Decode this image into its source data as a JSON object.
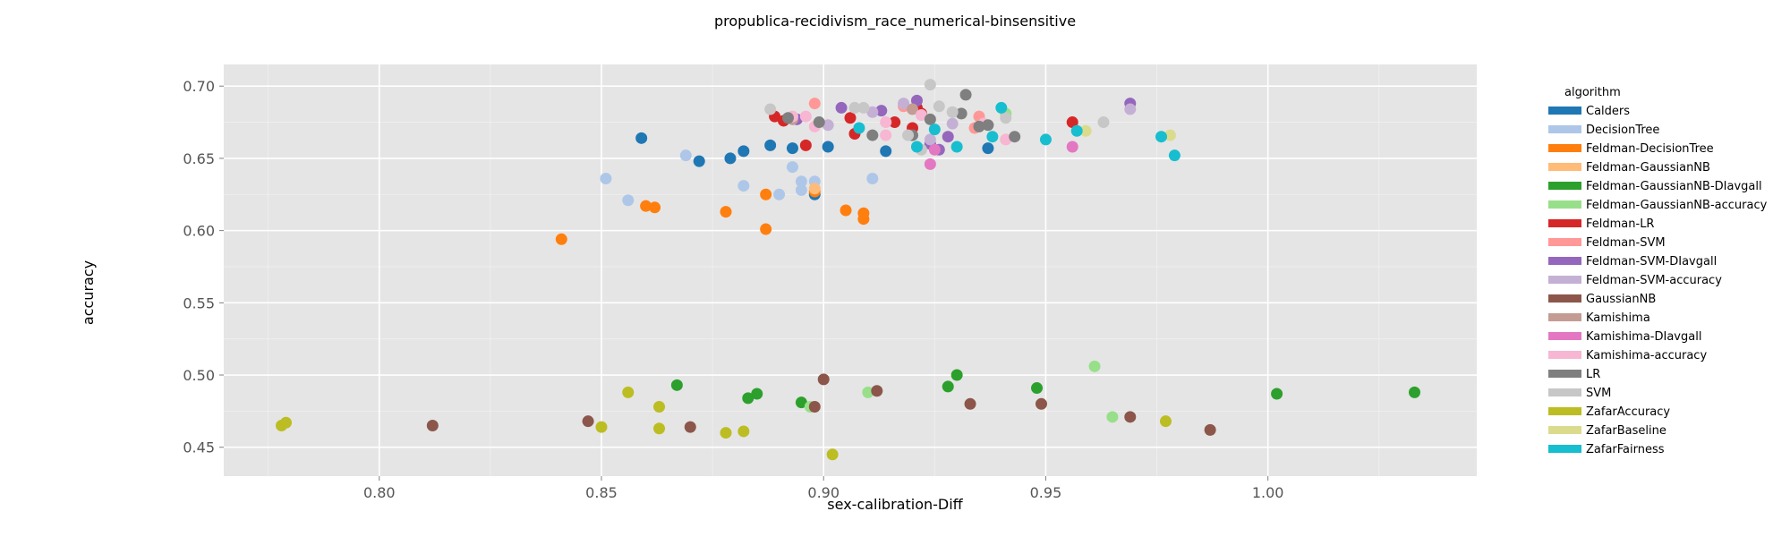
{
  "chart_data": {
    "type": "scatter",
    "title": "propublica-recidivism_race_numerical-binsensitive",
    "xlabel": "sex-calibration-Diff",
    "ylabel": "accuracy",
    "xlim": [
      0.765,
      1.047
    ],
    "ylim": [
      0.43,
      0.715
    ],
    "x_ticks": [
      0.8,
      0.85,
      0.9,
      0.95,
      1.0
    ],
    "x_tick_labels": [
      "0.80",
      "0.85",
      "0.90",
      "0.95",
      "1.00"
    ],
    "y_ticks": [
      0.45,
      0.5,
      0.55,
      0.6,
      0.65,
      0.7
    ],
    "y_tick_labels": [
      "0.45",
      "0.50",
      "0.55",
      "0.60",
      "0.65",
      "0.70"
    ],
    "grid": true,
    "background": "#e5e5e5",
    "legend": {
      "title": "algorithm",
      "position": "right"
    },
    "series": [
      {
        "name": "Calders",
        "color": "#1f77b4",
        "points": [
          [
            0.859,
            0.664
          ],
          [
            0.872,
            0.648
          ],
          [
            0.879,
            0.65
          ],
          [
            0.882,
            0.655
          ],
          [
            0.888,
            0.659
          ],
          [
            0.893,
            0.657
          ],
          [
            0.898,
            0.625
          ],
          [
            0.901,
            0.658
          ],
          [
            0.914,
            0.655
          ],
          [
            0.937,
            0.657
          ]
        ]
      },
      {
        "name": "DecisionTree",
        "color": "#aec7e8",
        "points": [
          [
            0.851,
            0.636
          ],
          [
            0.856,
            0.621
          ],
          [
            0.869,
            0.652
          ],
          [
            0.882,
            0.631
          ],
          [
            0.89,
            0.625
          ],
          [
            0.893,
            0.644
          ],
          [
            0.895,
            0.634
          ],
          [
            0.895,
            0.628
          ],
          [
            0.898,
            0.634
          ],
          [
            0.911,
            0.636
          ]
        ]
      },
      {
        "name": "Feldman-DecisionTree",
        "color": "#ff7f0e",
        "points": [
          [
            0.841,
            0.594
          ],
          [
            0.86,
            0.617
          ],
          [
            0.862,
            0.616
          ],
          [
            0.878,
            0.613
          ],
          [
            0.887,
            0.625
          ],
          [
            0.887,
            0.601
          ],
          [
            0.898,
            0.627
          ],
          [
            0.905,
            0.614
          ],
          [
            0.909,
            0.612
          ],
          [
            0.909,
            0.608
          ]
        ]
      },
      {
        "name": "Feldman-GaussianNB",
        "color": "#ffbb78",
        "points": [
          [
            0.898,
            0.629
          ]
        ]
      },
      {
        "name": "Feldman-GaussianNB-DIavgall",
        "color": "#2ca02c",
        "points": [
          [
            0.867,
            0.493
          ],
          [
            0.883,
            0.484
          ],
          [
            0.885,
            0.487
          ],
          [
            0.895,
            0.481
          ],
          [
            0.928,
            0.492
          ],
          [
            0.93,
            0.5
          ],
          [
            0.948,
            0.491
          ],
          [
            1.002,
            0.487
          ],
          [
            1.033,
            0.488
          ]
        ]
      },
      {
        "name": "Feldman-GaussianNB-accuracy",
        "color": "#98df8a",
        "points": [
          [
            0.897,
            0.478
          ],
          [
            0.91,
            0.488
          ],
          [
            0.941,
            0.681
          ],
          [
            0.961,
            0.506
          ],
          [
            0.965,
            0.471
          ]
        ]
      },
      {
        "name": "Feldman-LR",
        "color": "#d62728",
        "points": [
          [
            0.889,
            0.679
          ],
          [
            0.891,
            0.676
          ],
          [
            0.896,
            0.659
          ],
          [
            0.906,
            0.678
          ],
          [
            0.907,
            0.667
          ],
          [
            0.916,
            0.675
          ],
          [
            0.92,
            0.671
          ],
          [
            0.921,
            0.685
          ],
          [
            0.922,
            0.681
          ],
          [
            0.956,
            0.675
          ]
        ]
      },
      {
        "name": "Feldman-SVM",
        "color": "#ff9896",
        "points": [
          [
            0.898,
            0.688
          ],
          [
            0.918,
            0.686
          ],
          [
            0.934,
            0.671
          ],
          [
            0.935,
            0.679
          ]
        ]
      },
      {
        "name": "Feldman-SVM-DIavgall",
        "color": "#9467bd",
        "points": [
          [
            0.894,
            0.677
          ],
          [
            0.904,
            0.685
          ],
          [
            0.913,
            0.683
          ],
          [
            0.921,
            0.69
          ],
          [
            0.924,
            0.66
          ],
          [
            0.926,
            0.656
          ],
          [
            0.928,
            0.665
          ],
          [
            0.969,
            0.688
          ]
        ]
      },
      {
        "name": "Feldman-SVM-accuracy",
        "color": "#c5b0d5",
        "points": [
          [
            0.901,
            0.673
          ],
          [
            0.911,
            0.682
          ],
          [
            0.918,
            0.688
          ],
          [
            0.924,
            0.663
          ],
          [
            0.929,
            0.674
          ],
          [
            0.969,
            0.684
          ]
        ]
      },
      {
        "name": "GaussianNB",
        "color": "#8c564b",
        "points": [
          [
            0.812,
            0.465
          ],
          [
            0.847,
            0.468
          ],
          [
            0.87,
            0.464
          ],
          [
            0.898,
            0.478
          ],
          [
            0.9,
            0.497
          ],
          [
            0.912,
            0.489
          ],
          [
            0.933,
            0.48
          ],
          [
            0.949,
            0.48
          ],
          [
            0.969,
            0.471
          ],
          [
            0.987,
            0.462
          ]
        ]
      },
      {
        "name": "Kamishima",
        "color": "#c49c94",
        "points": [
          [
            0.893,
            0.677
          ],
          [
            0.92,
            0.684
          ]
        ]
      },
      {
        "name": "Kamishima-DIavgall",
        "color": "#e377c2",
        "points": [
          [
            0.924,
            0.646
          ],
          [
            0.925,
            0.656
          ],
          [
            0.956,
            0.658
          ]
        ]
      },
      {
        "name": "Kamishima-accuracy",
        "color": "#f7b6d2",
        "points": [
          [
            0.893,
            0.679
          ],
          [
            0.896,
            0.679
          ],
          [
            0.898,
            0.672
          ],
          [
            0.914,
            0.675
          ],
          [
            0.914,
            0.666
          ],
          [
            0.922,
            0.68
          ],
          [
            0.936,
            0.674
          ],
          [
            0.941,
            0.663
          ]
        ]
      },
      {
        "name": "LR",
        "color": "#7f7f7f",
        "points": [
          [
            0.892,
            0.678
          ],
          [
            0.899,
            0.675
          ],
          [
            0.911,
            0.666
          ],
          [
            0.92,
            0.666
          ],
          [
            0.924,
            0.677
          ],
          [
            0.931,
            0.681
          ],
          [
            0.932,
            0.694
          ],
          [
            0.935,
            0.672
          ],
          [
            0.937,
            0.673
          ],
          [
            0.943,
            0.665
          ]
        ]
      },
      {
        "name": "SVM",
        "color": "#c7c7c7",
        "points": [
          [
            0.888,
            0.684
          ],
          [
            0.907,
            0.685
          ],
          [
            0.909,
            0.685
          ],
          [
            0.919,
            0.666
          ],
          [
            0.922,
            0.656
          ],
          [
            0.924,
            0.701
          ],
          [
            0.926,
            0.686
          ],
          [
            0.929,
            0.682
          ],
          [
            0.941,
            0.678
          ],
          [
            0.963,
            0.675
          ]
        ]
      },
      {
        "name": "ZafarAccuracy",
        "color": "#bcbd22",
        "points": [
          [
            0.778,
            0.465
          ],
          [
            0.779,
            0.467
          ],
          [
            0.85,
            0.464
          ],
          [
            0.856,
            0.488
          ],
          [
            0.863,
            0.478
          ],
          [
            0.863,
            0.463
          ],
          [
            0.878,
            0.46
          ],
          [
            0.882,
            0.461
          ],
          [
            0.902,
            0.445
          ],
          [
            0.977,
            0.468
          ]
        ]
      },
      {
        "name": "ZafarBaseline",
        "color": "#dbdb8d",
        "points": [
          [
            0.959,
            0.669
          ],
          [
            0.978,
            0.666
          ]
        ]
      },
      {
        "name": "ZafarFairness",
        "color": "#17becf",
        "points": [
          [
            0.908,
            0.671
          ],
          [
            0.921,
            0.658
          ],
          [
            0.925,
            0.67
          ],
          [
            0.93,
            0.658
          ],
          [
            0.938,
            0.665
          ],
          [
            0.94,
            0.685
          ],
          [
            0.95,
            0.663
          ],
          [
            0.957,
            0.669
          ],
          [
            0.976,
            0.665
          ],
          [
            0.979,
            0.652
          ]
        ]
      }
    ]
  }
}
